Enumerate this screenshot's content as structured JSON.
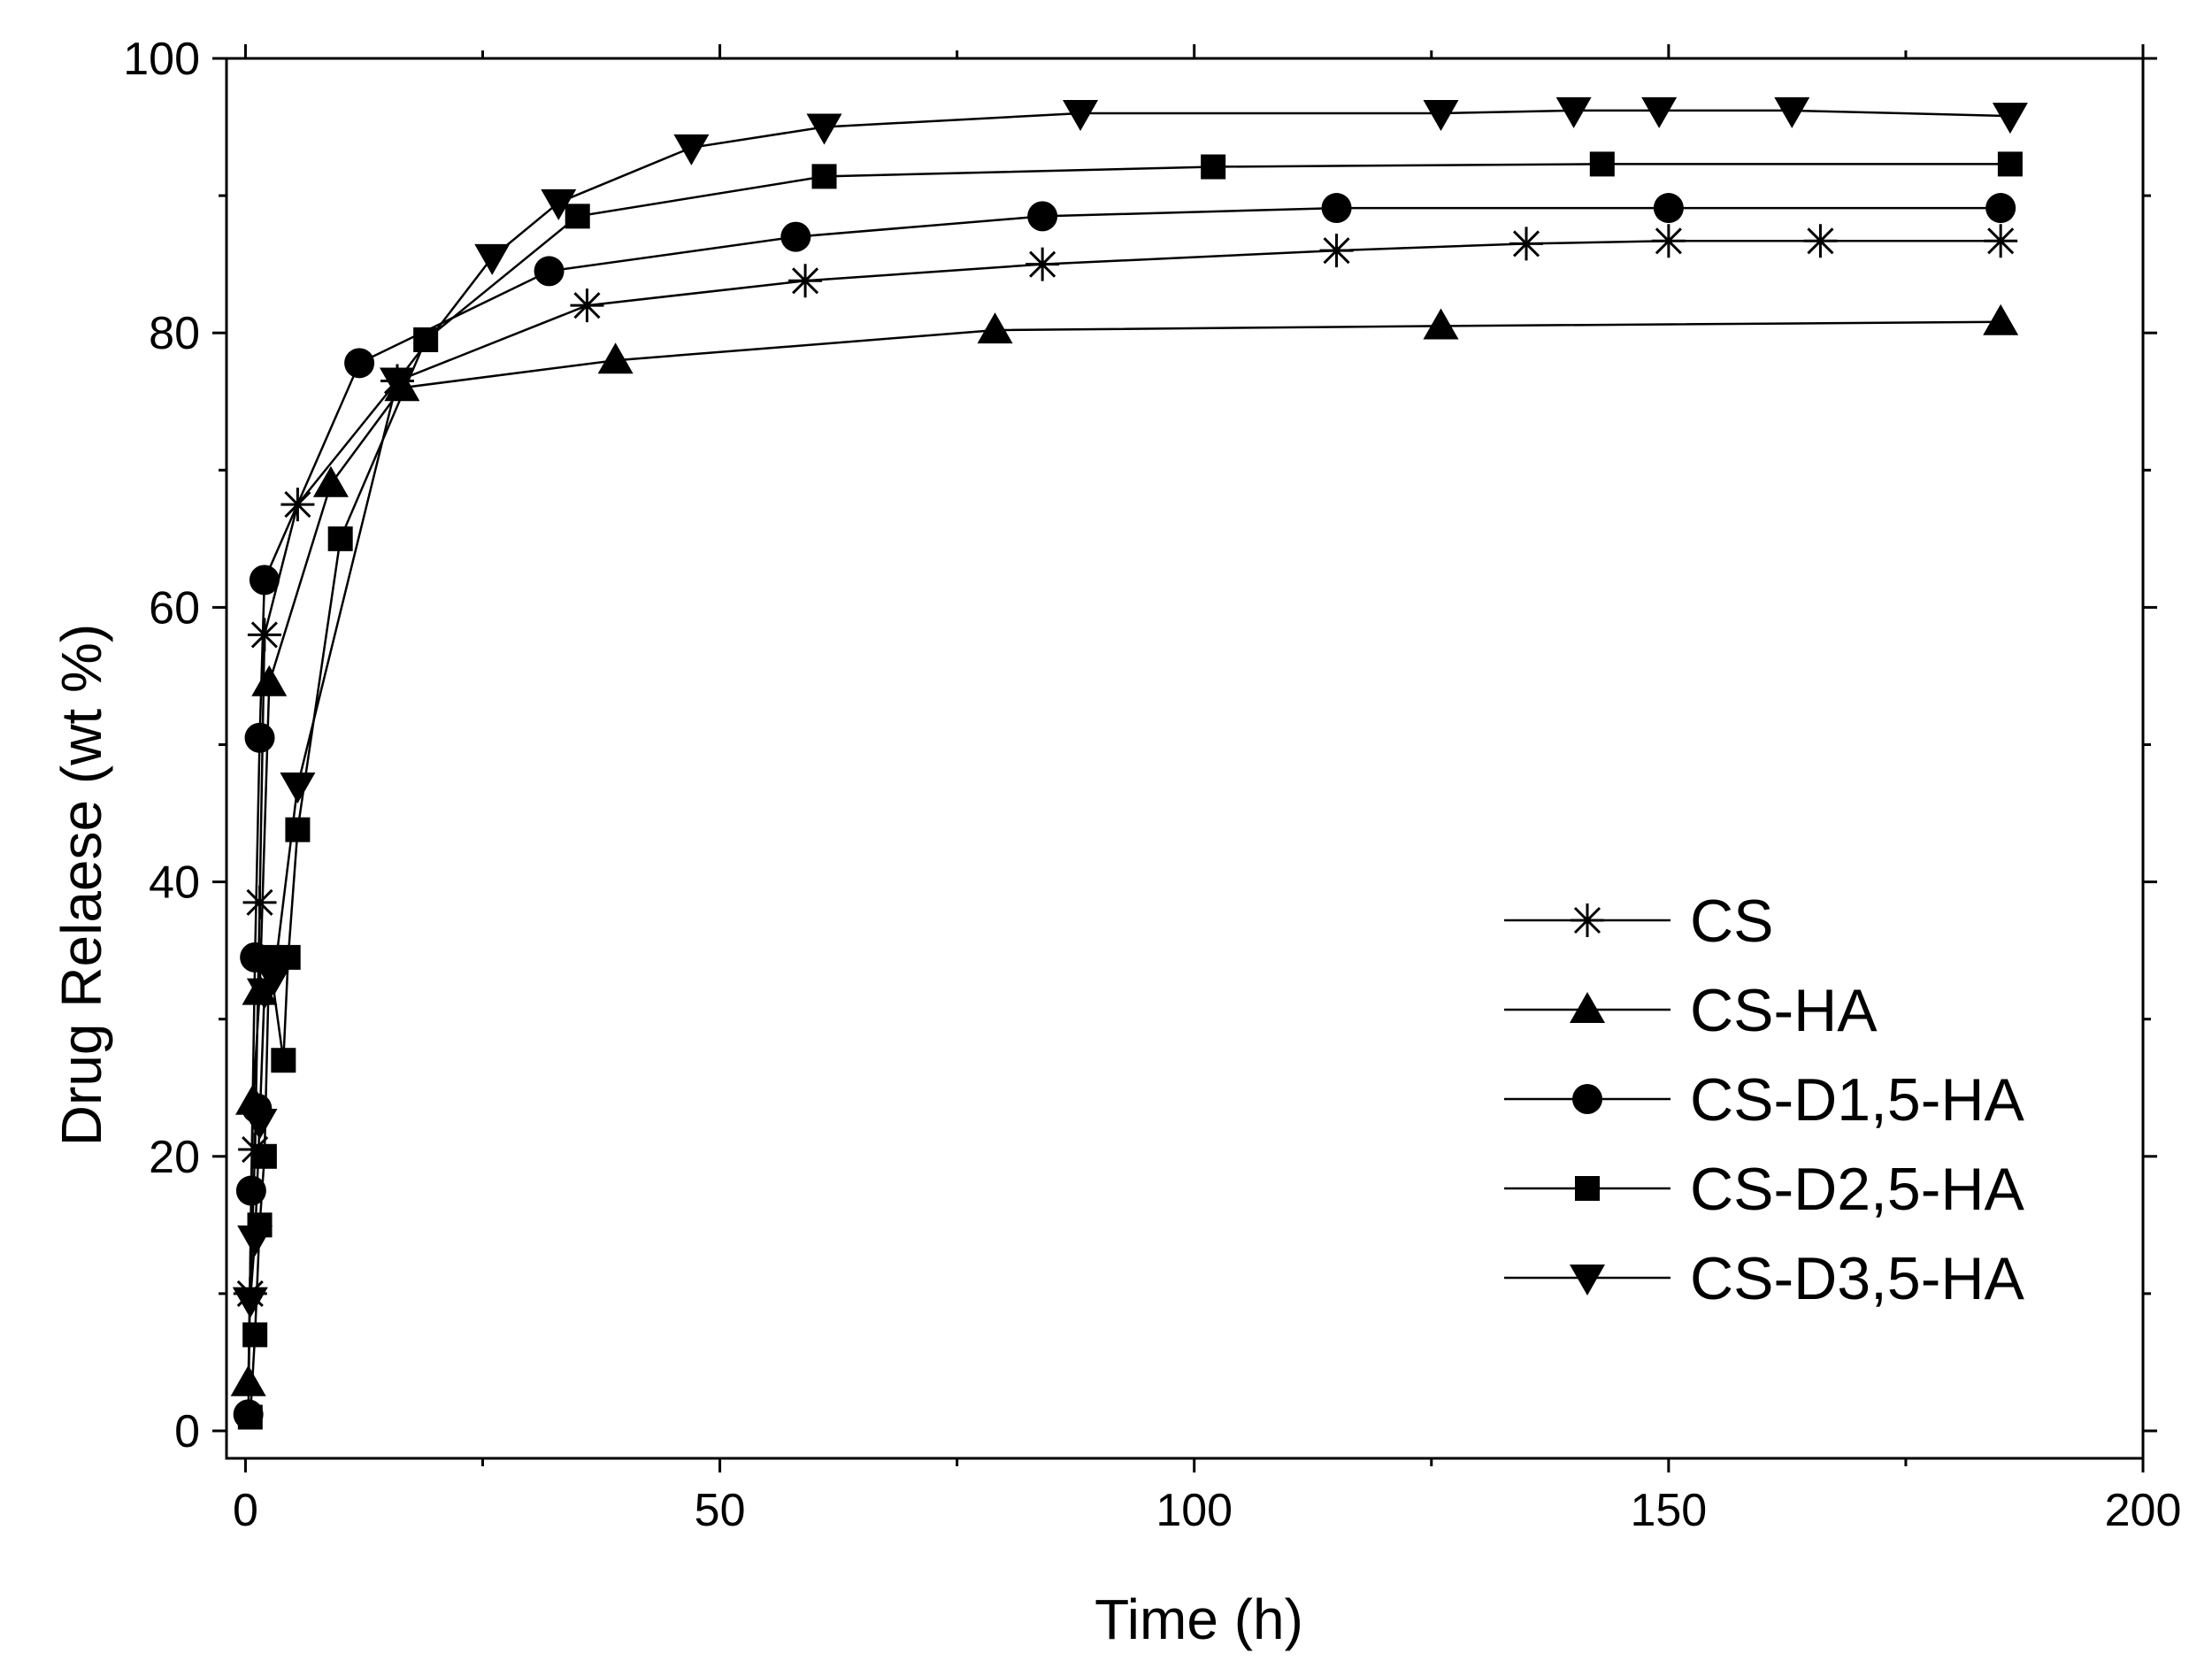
{
  "chart_data": {
    "type": "line",
    "title": "",
    "xlabel": "Time (h)",
    "ylabel": "Drug Relaese (wt %)",
    "xlim": [
      -2,
      200
    ],
    "ylim": [
      -2,
      100
    ],
    "xticks": [
      0,
      50,
      100,
      150,
      200
    ],
    "yticks": [
      0,
      20,
      40,
      60,
      80,
      100
    ],
    "x_minor_step": 25,
    "y_minor_step": 10,
    "grid": false,
    "legend_position": "bottom-right",
    "series": [
      {
        "name": "CS",
        "marker": "asterisk",
        "x": [
          0.5,
          1,
          1.5,
          2,
          5.5,
          16,
          36,
          59,
          84,
          115,
          135,
          150,
          166,
          185
        ],
        "y": [
          10,
          20.5,
          38.5,
          58,
          67.5,
          76.5,
          82,
          83.8,
          85,
          86,
          86.5,
          86.7,
          86.7,
          86.7
        ]
      },
      {
        "name": "CS-HA",
        "marker": "triangle-up",
        "x": [
          0.3,
          0.8,
          1.5,
          2.5,
          9,
          16.5,
          39,
          79,
          126,
          185
        ],
        "y": [
          3.5,
          24,
          32,
          54.5,
          69,
          76,
          78,
          80.2,
          80.5,
          80.8
        ]
      },
      {
        "name": "CS-D1,5-HA",
        "marker": "circle",
        "x": [
          0.3,
          0.6,
          1,
          1.5,
          2,
          12,
          32,
          58,
          84,
          115,
          150,
          185
        ],
        "y": [
          1.2,
          17.5,
          34.5,
          50.5,
          62,
          77.8,
          84.5,
          87,
          88.5,
          89.1,
          89.1,
          89.1
        ],
        "extra_points": {
          "x": [
            1.2
          ],
          "y": [
            23.5
          ]
        }
      },
      {
        "name": "CS-D2,5-HA",
        "marker": "square",
        "x": [
          0.5,
          1,
          1.5,
          2,
          2.5,
          4,
          4.5,
          5.5,
          10,
          19,
          35,
          61,
          102,
          143,
          186
        ],
        "y": [
          1,
          7,
          15,
          20,
          34.5,
          27,
          34.5,
          43.8,
          65,
          79.5,
          88.5,
          91.4,
          92.1,
          92.3,
          92.3
        ]
      },
      {
        "name": "CS-D3,5-HA",
        "marker": "triangle-down",
        "x": [
          0.5,
          1,
          1.5,
          2,
          3,
          5.5,
          16,
          26,
          33,
          47,
          61,
          88,
          126,
          140,
          149,
          163,
          186
        ],
        "y": [
          9.5,
          14,
          22.5,
          32,
          33,
          47,
          76.5,
          85.5,
          89.5,
          93.5,
          95,
          96,
          96,
          96.2,
          96.2,
          96.2,
          95.8
        ]
      }
    ]
  }
}
